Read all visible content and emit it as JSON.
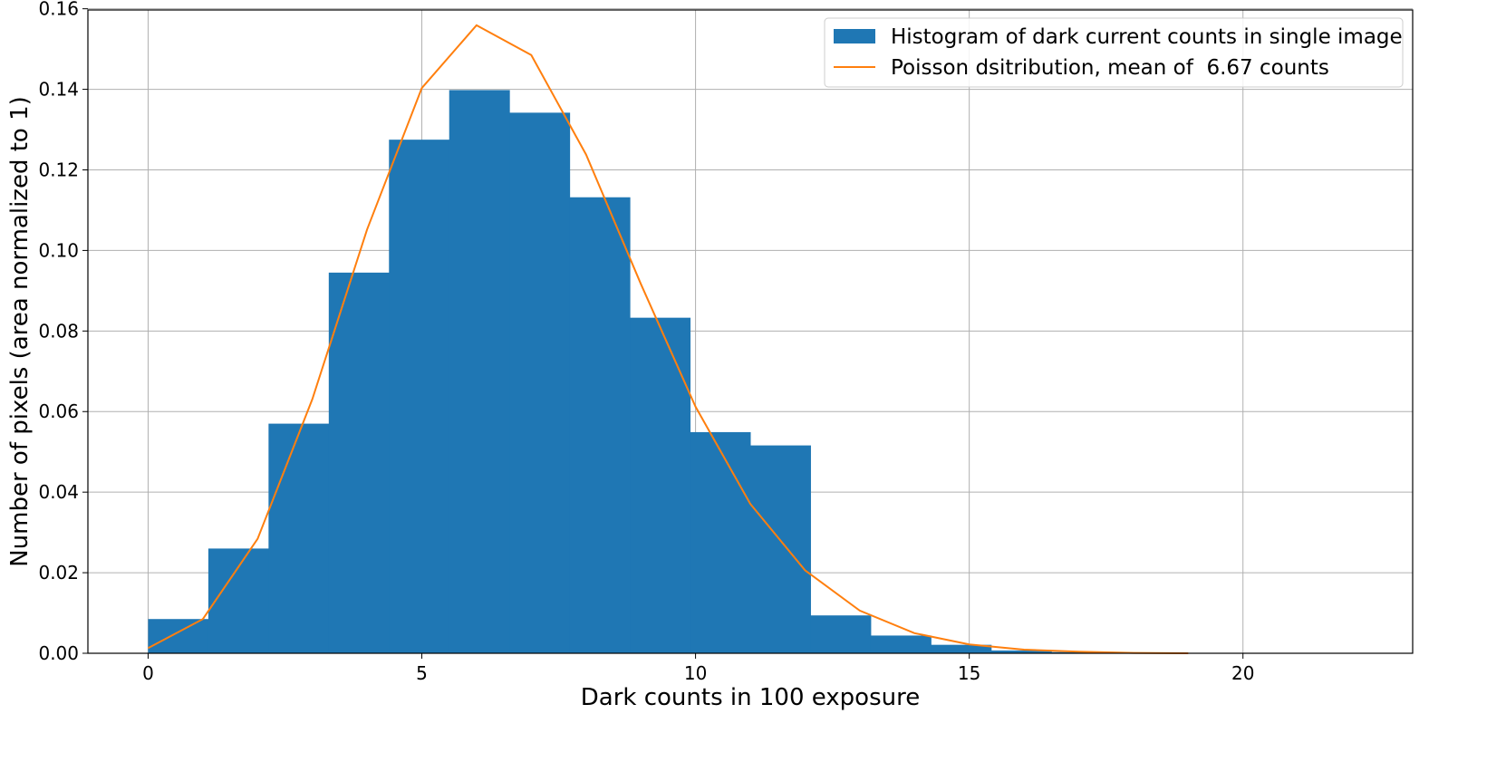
{
  "chart_data": {
    "type": "bar",
    "title": "",
    "xlabel": "Dark counts in 100 exposure",
    "ylabel": "Number of pixels (area normalized to 1)",
    "xlim": [
      -1.1,
      23.1
    ],
    "ylim": [
      0,
      0.1597
    ],
    "xticks": [
      0,
      5,
      10,
      15,
      20
    ],
    "xtick_labels": [
      "0",
      "5",
      "10",
      "15",
      "20"
    ],
    "yticks": [
      0.0,
      0.02,
      0.04,
      0.06,
      0.08,
      0.1,
      0.12,
      0.14,
      0.16
    ],
    "ytick_labels": [
      "0.00",
      "0.02",
      "0.04",
      "0.06",
      "0.08",
      "0.10",
      "0.12",
      "0.14",
      "0.16"
    ],
    "grid": true,
    "legend_position": "top-right",
    "series": [
      {
        "name": "Histogram of dark current counts in single image",
        "kind": "histogram",
        "color": "#1f77b4",
        "bin_edges": [
          0,
          1.1,
          2.2,
          3.3,
          4.4,
          5.5,
          6.6,
          7.7,
          8.8,
          9.9,
          11.0,
          12.1,
          13.2,
          14.3,
          15.4,
          16.5,
          17.6,
          18.7
        ],
        "values": [
          0.0085,
          0.026,
          0.057,
          0.0945,
          0.1275,
          0.1398,
          0.1342,
          0.1132,
          0.0833,
          0.0549,
          0.0516,
          0.0094,
          0.0044,
          0.0021,
          0.0007,
          0.0003,
          0.0001
        ]
      },
      {
        "name": "Poisson dsitribution, mean of  6.67 counts",
        "kind": "line",
        "color": "#ff7f0e",
        "x": [
          0,
          1,
          2,
          3,
          4,
          5,
          6,
          7,
          8,
          9,
          10,
          11,
          12,
          13,
          14,
          15,
          16,
          17,
          18,
          19
        ],
        "values": [
          0.0013,
          0.0085,
          0.0284,
          0.0631,
          0.1052,
          0.1403,
          0.1559,
          0.1485,
          0.1238,
          0.0917,
          0.0612,
          0.0371,
          0.0206,
          0.0106,
          0.005,
          0.0022,
          0.0009,
          0.0004,
          0.0001,
          0.0
        ]
      }
    ]
  }
}
